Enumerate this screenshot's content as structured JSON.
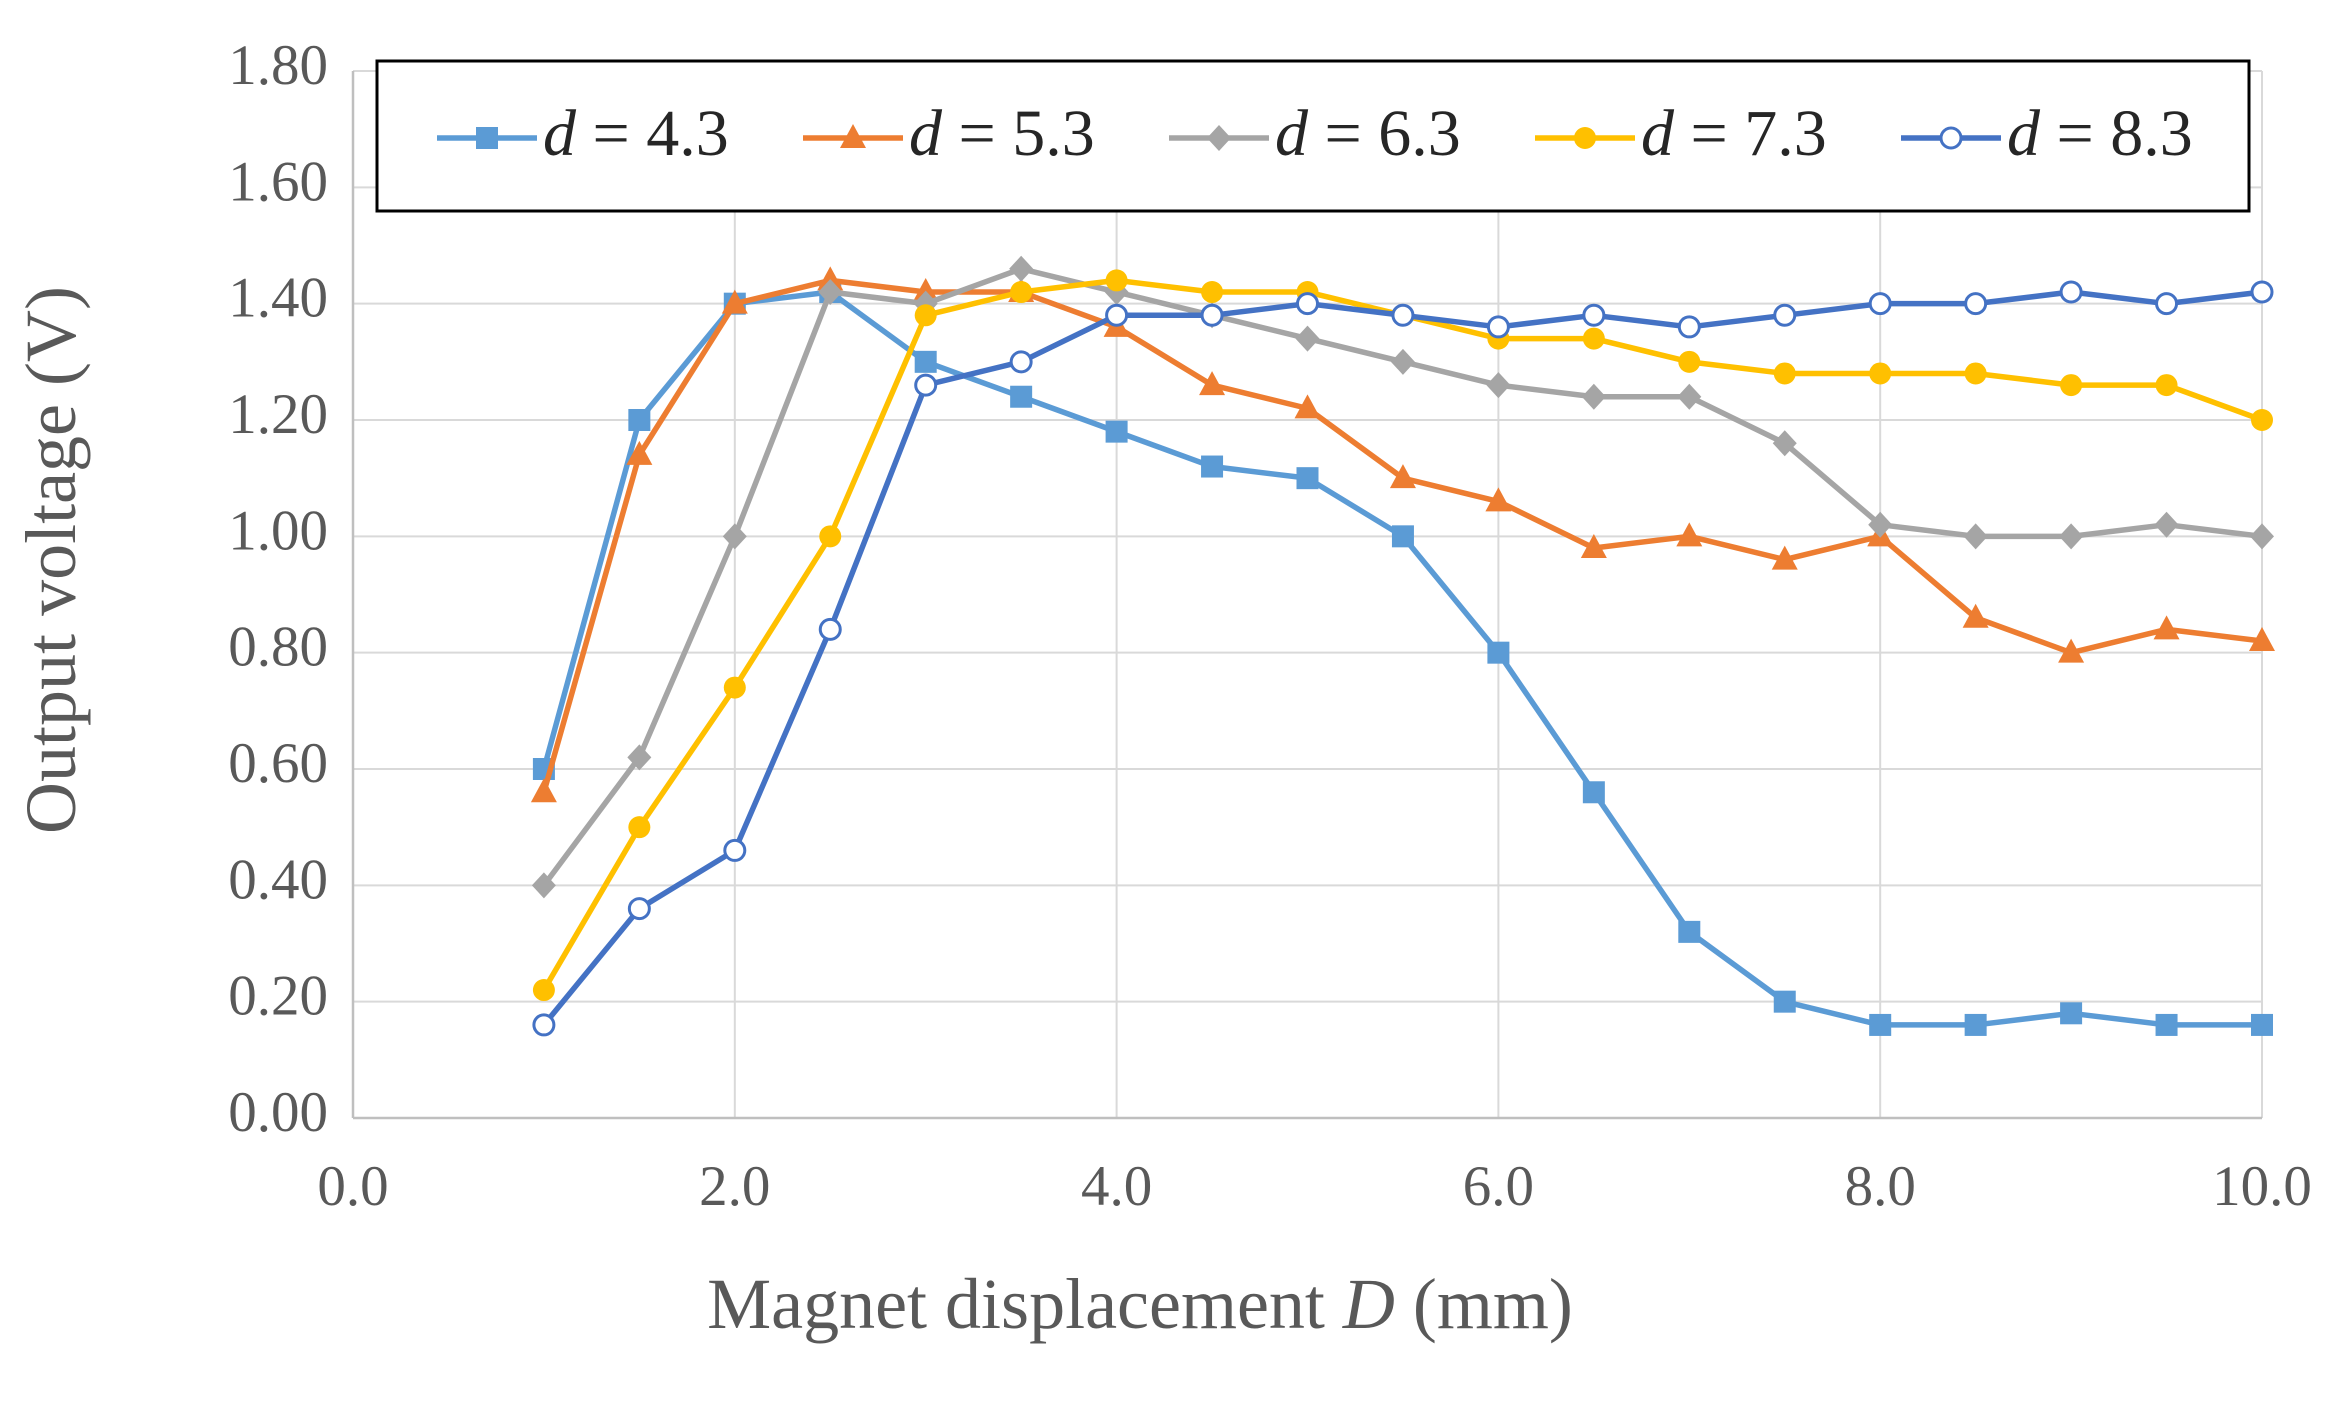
{
  "chart_data": {
    "type": "line",
    "xlabel": {
      "prefix": "Magnet displacement ",
      "var": "D",
      "suffix": " (mm)"
    },
    "ylabel": "Output voltage (V)",
    "xlim": [
      0,
      10
    ],
    "ylim": [
      0,
      1.8
    ],
    "x_ticks": [
      "0.0",
      "2.0",
      "4.0",
      "6.0",
      "8.0",
      "10.0"
    ],
    "y_ticks": [
      "0.00",
      "0.20",
      "0.40",
      "0.60",
      "0.80",
      "1.00",
      "1.20",
      "1.40",
      "1.60",
      "1.80"
    ],
    "grid": true,
    "legend_position": "top",
    "x": [
      1.0,
      1.5,
      2.0,
      2.5,
      3.0,
      3.5,
      4.0,
      4.5,
      5.0,
      5.5,
      6.0,
      6.5,
      7.0,
      7.5,
      8.0,
      8.5,
      9.0,
      9.5,
      10.0
    ],
    "series": [
      {
        "name": "d = 4.3",
        "var": "d",
        "rest": " = 4.3",
        "color": "#5B9BD5",
        "marker": "square",
        "values": [
          0.6,
          1.2,
          1.4,
          1.42,
          1.3,
          1.24,
          1.18,
          1.12,
          1.1,
          1.0,
          0.8,
          0.56,
          0.32,
          0.2,
          0.16,
          0.16,
          0.18,
          0.16,
          0.16
        ]
      },
      {
        "name": "d = 5.3",
        "var": "d",
        "rest": " = 5.3",
        "color": "#ED7D31",
        "marker": "triangle",
        "values": [
          0.56,
          1.14,
          1.4,
          1.44,
          1.42,
          1.42,
          1.36,
          1.26,
          1.22,
          1.1,
          1.06,
          0.98,
          1.0,
          0.96,
          1.0,
          0.86,
          0.8,
          0.84,
          0.82
        ]
      },
      {
        "name": "d = 6.3",
        "var": "d",
        "rest": " = 6.3",
        "color": "#A5A5A5",
        "marker": "diamond",
        "values": [
          0.4,
          0.62,
          1.0,
          1.42,
          1.4,
          1.46,
          1.42,
          1.38,
          1.34,
          1.3,
          1.26,
          1.24,
          1.24,
          1.16,
          1.02,
          1.0,
          1.0,
          1.02,
          1.0
        ]
      },
      {
        "name": "d = 7.3",
        "var": "d",
        "rest": " = 7.3",
        "color": "#FFC000",
        "marker": "circle",
        "values": [
          0.22,
          0.5,
          0.74,
          1.0,
          1.38,
          1.42,
          1.44,
          1.42,
          1.42,
          1.38,
          1.34,
          1.34,
          1.3,
          1.28,
          1.28,
          1.28,
          1.26,
          1.26,
          1.2
        ]
      },
      {
        "name": "d = 8.3",
        "var": "d",
        "rest": " = 8.3",
        "color": "#4472C4",
        "marker": "open-circle",
        "values": [
          0.16,
          0.36,
          0.46,
          0.84,
          1.26,
          1.3,
          1.38,
          1.38,
          1.4,
          1.38,
          1.36,
          1.38,
          1.36,
          1.38,
          1.4,
          1.4,
          1.42,
          1.4,
          1.42
        ]
      }
    ]
  }
}
